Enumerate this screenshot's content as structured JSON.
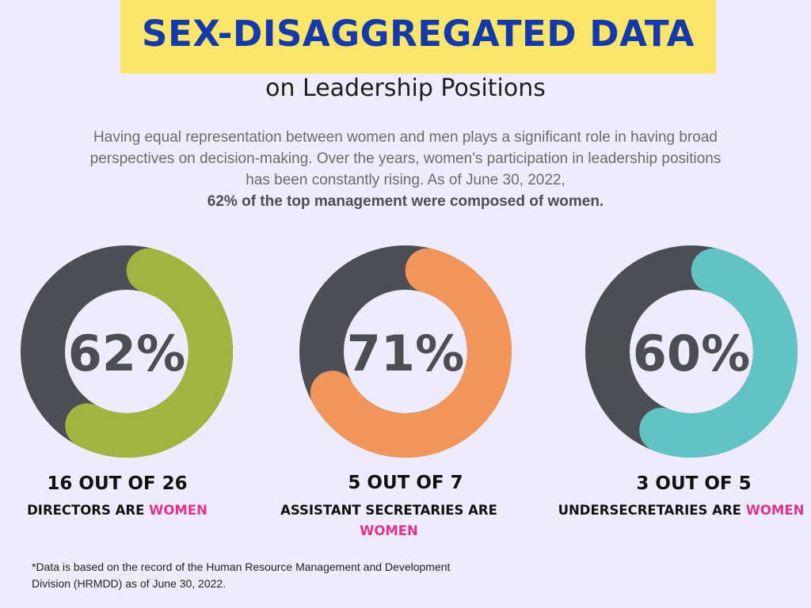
{
  "header": {
    "title": "SEX-DISAGGREGATED DATA",
    "subtitle": "on Leadership Positions"
  },
  "intro": {
    "text": "Having equal representation between women and men plays a significant role in having broad perspectives on decision-making. Over the years, women's participation in leadership positions has been constantly rising. As of June 30, 2022,",
    "highlight": "62% of the top management were composed of women."
  },
  "colors": {
    "background": "#eeecfc",
    "banner": "#fbe56a",
    "title": "#133aa8",
    "track": "#4b4f55",
    "women_text": "#e0338c"
  },
  "chart_data": [
    {
      "type": "pie",
      "variant": "donut",
      "percent_label": "62%",
      "values": [
        62,
        38
      ],
      "colors": [
        "#a0b43f",
        "#4b4f55"
      ],
      "count_label": "16 OUT OF 26",
      "desc_label": "DIRECTORS ARE",
      "women_label": "WOMEN"
    },
    {
      "type": "pie",
      "variant": "donut",
      "percent_label": "71%",
      "values": [
        71,
        29
      ],
      "colors": [
        "#f0955b",
        "#4b4f55"
      ],
      "count_label": "5 OUT OF 7",
      "desc_label": "ASSISTANT SECRETARIES ARE",
      "women_label": "WOMEN"
    },
    {
      "type": "pie",
      "variant": "donut",
      "percent_label": "60%",
      "values": [
        60,
        40
      ],
      "colors": [
        "#62c3c4",
        "#4b4f55"
      ],
      "count_label": "3 OUT OF 5",
      "desc_label": "UNDERSECRETARIES ARE",
      "women_label": "WOMEN"
    }
  ],
  "footnote": "*Data is based on the record of the Human Resource Management and Development Division (HRMDD) as of June 30, 2022."
}
